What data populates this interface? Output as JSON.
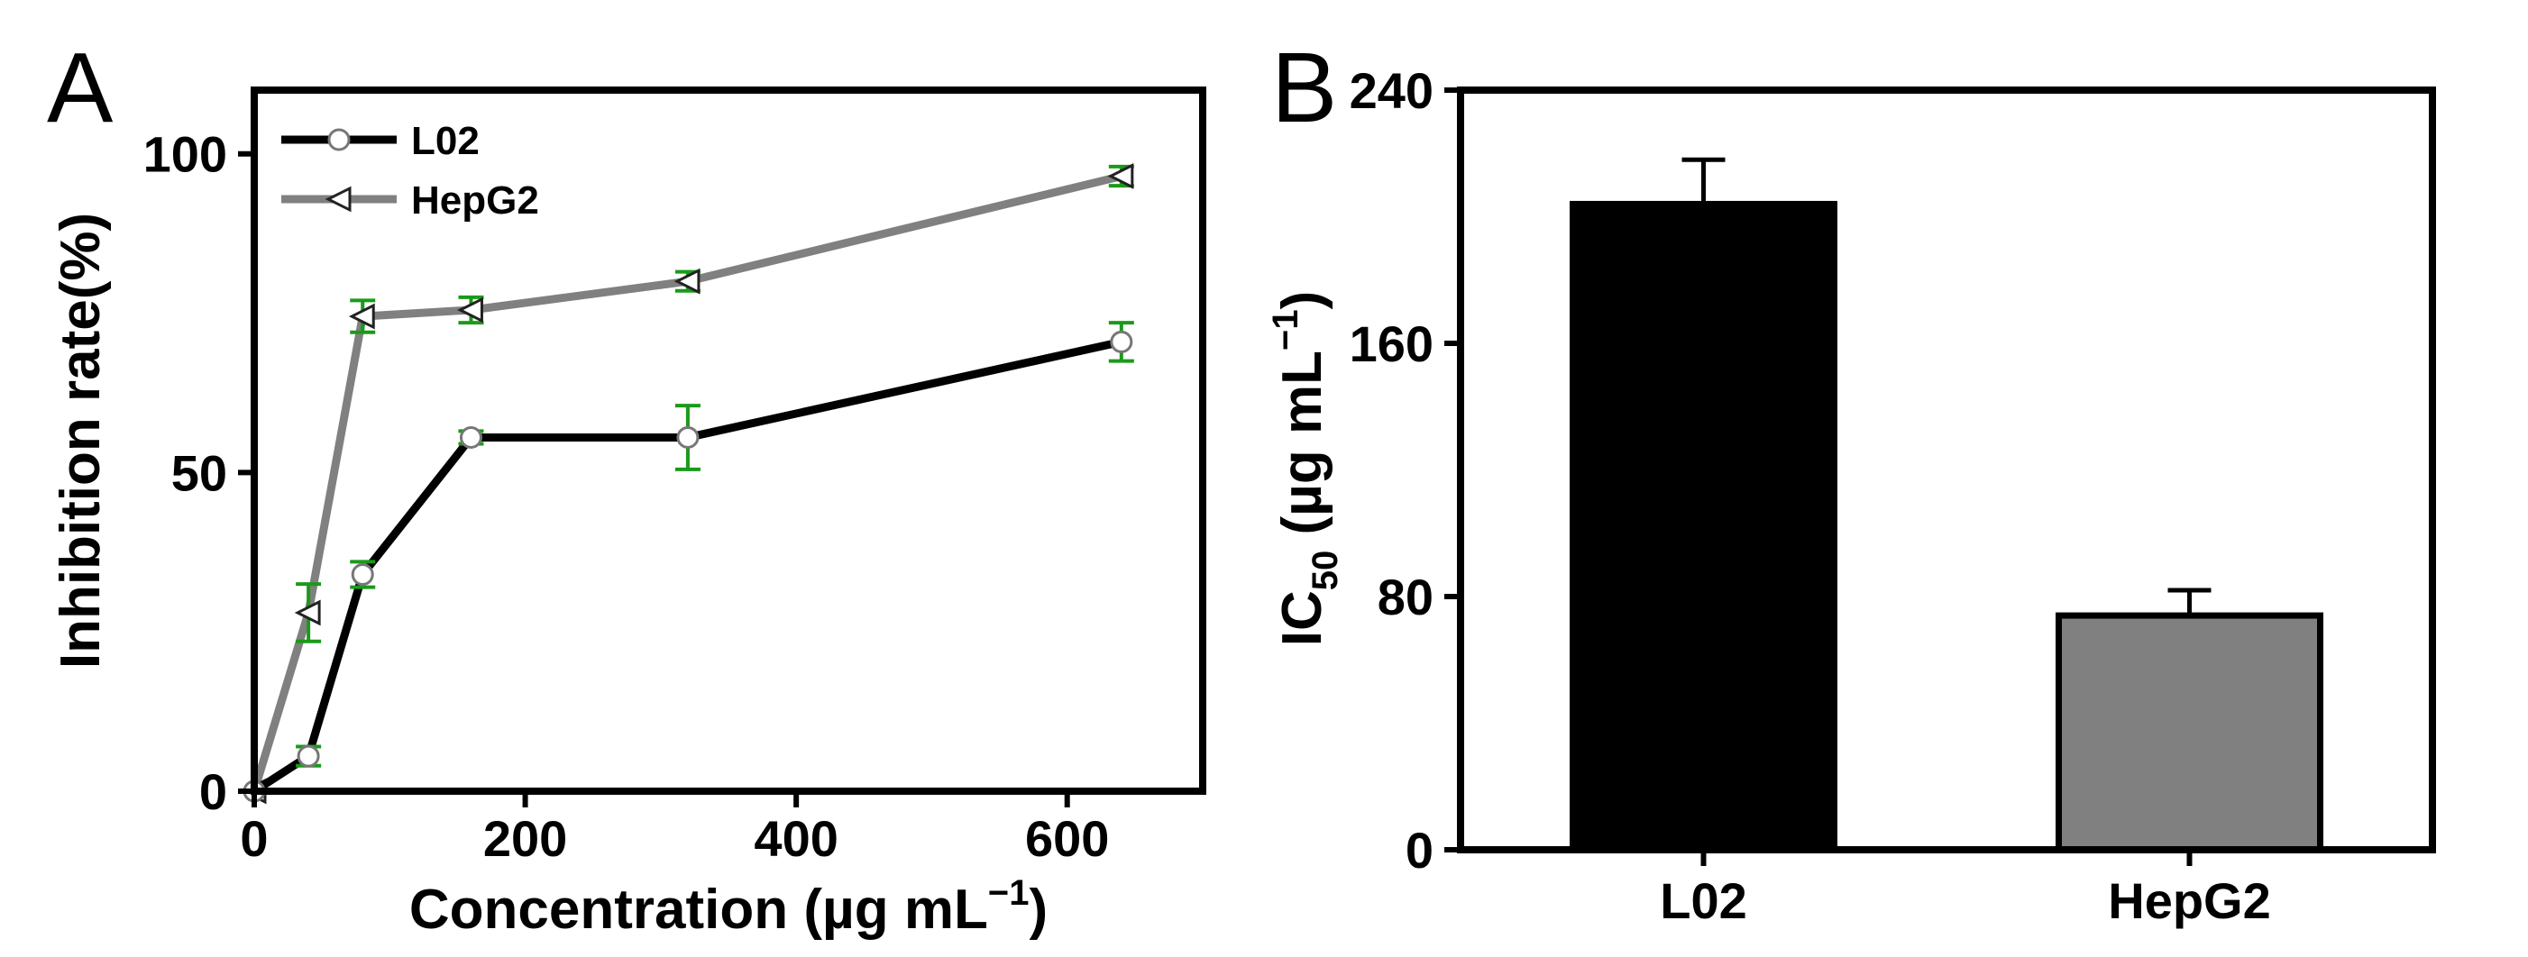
{
  "chart_data": [
    {
      "panel": "A",
      "type": "line",
      "xlabel_main": "Concentration (µg mL",
      "xlabel_sup": "−1",
      "xlabel_end": ")",
      "ylabel": "Inhibition rate(%)",
      "xlim": [
        0,
        700
      ],
      "ylim": [
        0,
        110
      ],
      "x_ticks": [
        0,
        200,
        400,
        600
      ],
      "y_ticks": [
        0,
        50,
        100
      ],
      "x_tick_labels": [
        "0",
        "200",
        "400",
        "600"
      ],
      "y_tick_labels": [
        "0",
        "50",
        "100"
      ],
      "legend_position": "top-left",
      "series": [
        {
          "name": "L02",
          "marker": "circle",
          "color": "#000000",
          "x": [
            0,
            40,
            80,
            160,
            320,
            640
          ],
          "y": [
            0,
            5.5,
            34,
            55.5,
            55.5,
            70.5
          ],
          "err": [
            0,
            1.5,
            2,
            1,
            5,
            3
          ]
        },
        {
          "name": "HepG2",
          "marker": "triangle-left",
          "color": "#808080",
          "x": [
            0,
            40,
            80,
            160,
            320,
            640
          ],
          "y": [
            0,
            28,
            74.5,
            75.5,
            80,
            96.5
          ],
          "err": [
            0,
            4.5,
            2.5,
            2,
            1.5,
            1.5
          ]
        }
      ],
      "error_bar_color": "#1a9a1a"
    },
    {
      "panel": "B",
      "type": "bar",
      "ylabel_main": "IC",
      "ylabel_sub": "50",
      "ylabel_rest": " (µg mL",
      "ylabel_sup": "−1",
      "ylabel_end": ")",
      "categories": [
        "L02",
        "HepG2"
      ],
      "values": [
        204,
        74
      ],
      "errors": [
        14,
        8
      ],
      "colors": [
        "#000000",
        "#808080"
      ],
      "ylim": [
        0,
        240
      ],
      "y_ticks": [
        0,
        80,
        160,
        240
      ],
      "y_tick_labels": [
        "0",
        "80",
        "160",
        "240"
      ]
    }
  ]
}
